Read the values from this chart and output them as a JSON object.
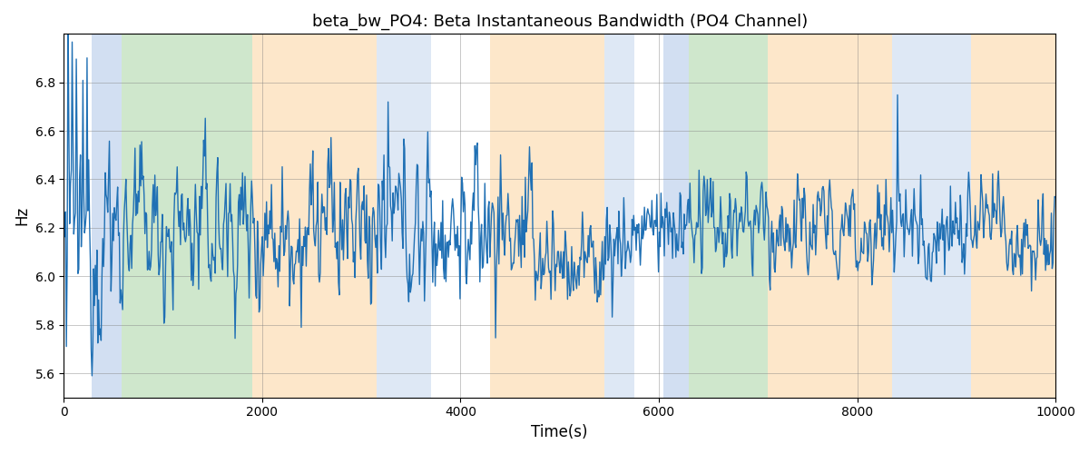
{
  "title": "beta_bw_PO4: Beta Instantaneous Bandwidth (PO4 Channel)",
  "xlabel": "Time(s)",
  "ylabel": "Hz",
  "xlim": [
    0,
    10000
  ],
  "ylim": [
    5.5,
    7.0
  ],
  "yticks": [
    5.6,
    5.8,
    6.0,
    6.2,
    6.4,
    6.6,
    6.8
  ],
  "xticks": [
    0,
    2000,
    4000,
    6000,
    8000,
    10000
  ],
  "line_color": "#2070b4",
  "background_color": "#ffffff",
  "regions": [
    {
      "xmin": 280,
      "xmax": 580,
      "color": "#aec6e8",
      "alpha": 0.55
    },
    {
      "xmin": 580,
      "xmax": 1900,
      "color": "#a8d5a2",
      "alpha": 0.55
    },
    {
      "xmin": 1900,
      "xmax": 3150,
      "color": "#fdd5a0",
      "alpha": 0.55
    },
    {
      "xmin": 3150,
      "xmax": 3700,
      "color": "#aec6e8",
      "alpha": 0.4
    },
    {
      "xmin": 3700,
      "xmax": 4300,
      "color": "#ffffff",
      "alpha": 0.0
    },
    {
      "xmin": 4300,
      "xmax": 5450,
      "color": "#fdd5a0",
      "alpha": 0.55
    },
    {
      "xmin": 5450,
      "xmax": 5750,
      "color": "#aec6e8",
      "alpha": 0.4
    },
    {
      "xmin": 5750,
      "xmax": 6050,
      "color": "#ffffff",
      "alpha": 0.0
    },
    {
      "xmin": 6050,
      "xmax": 6300,
      "color": "#aec6e8",
      "alpha": 0.55
    },
    {
      "xmin": 6300,
      "xmax": 7100,
      "color": "#a8d5a2",
      "alpha": 0.55
    },
    {
      "xmin": 7100,
      "xmax": 8350,
      "color": "#fdd5a0",
      "alpha": 0.55
    },
    {
      "xmin": 8350,
      "xmax": 9150,
      "color": "#aec6e8",
      "alpha": 0.4
    },
    {
      "xmin": 9150,
      "xmax": 10000,
      "color": "#fdd5a0",
      "alpha": 0.55
    }
  ],
  "seed": 12345,
  "n_points": 1200,
  "base_mean": 6.2,
  "line_width": 1.0
}
